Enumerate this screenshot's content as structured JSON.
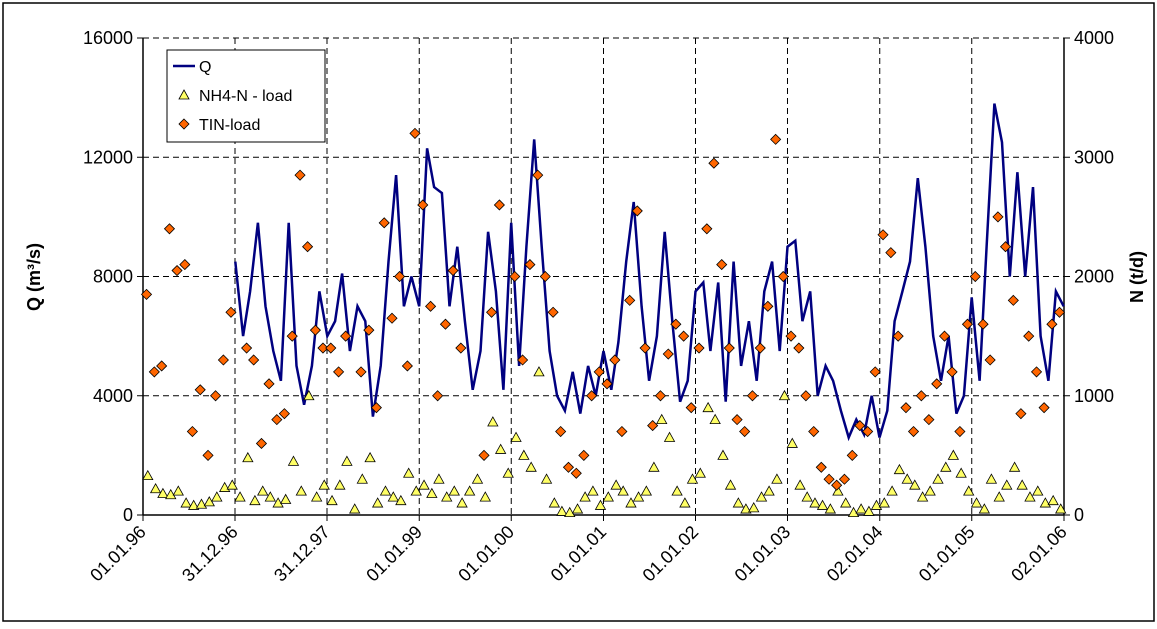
{
  "chart_data": {
    "type": "line-scatter",
    "ylabel": "Q (m³/s)",
    "y2label": "N (t/d)",
    "xlim": [
      "01.01.96",
      "02.01.06"
    ],
    "xticks": [
      "01.01.96",
      "31.12.96",
      "31.12.97",
      "01.01.99",
      "01.01.00",
      "01.01.01",
      "01.01.02",
      "01.01.03",
      "02.01.04",
      "01.01.05",
      "02.01.06"
    ],
    "ylim": [
      0,
      16000
    ],
    "yticks": [
      0,
      4000,
      8000,
      12000,
      16000
    ],
    "y2lim": [
      0,
      4000
    ],
    "y2ticks": [
      0,
      1000,
      2000,
      3000,
      4000
    ],
    "grid": true,
    "legend": "upper left",
    "series": [
      {
        "name": "Q",
        "kind": "line",
        "color": "#000080",
        "x": [
          "01.01.97",
          "01.02.97",
          "01.03.97",
          "01.04.97",
          "01.05.97",
          "01.06.97",
          "01.07.97",
          "01.08.97",
          "01.09.97",
          "01.10.97",
          "01.11.97",
          "01.12.97",
          "01.01.98",
          "01.02.98",
          "01.03.98",
          "01.04.98",
          "01.05.98",
          "01.06.98",
          "01.07.98",
          "01.08.98",
          "01.09.98",
          "01.10.98",
          "01.11.98",
          "01.12.98",
          "01.01.99",
          "01.02.99",
          "01.03.99",
          "01.04.99",
          "01.05.99",
          "01.06.99",
          "01.07.99",
          "01.08.99",
          "01.09.99",
          "01.10.99",
          "01.11.99",
          "01.12.99",
          "01.01.00",
          "01.02.00",
          "01.03.00",
          "01.04.00",
          "01.05.00",
          "01.06.00",
          "01.07.00",
          "01.08.00",
          "01.09.00",
          "01.10.00",
          "01.11.00",
          "01.12.00",
          "01.01.01",
          "01.02.01",
          "01.03.01",
          "01.04.01",
          "01.05.01",
          "01.06.01",
          "01.07.01",
          "01.08.01",
          "01.09.01",
          "01.10.01",
          "01.11.01",
          "01.12.01",
          "01.01.02",
          "01.02.02",
          "01.03.02",
          "01.04.02",
          "01.05.02",
          "01.06.02",
          "01.07.02",
          "01.08.02",
          "01.09.02",
          "01.10.02",
          "01.11.02",
          "01.12.02",
          "01.01.03",
          "01.02.03",
          "01.03.03",
          "01.04.03",
          "01.05.03",
          "01.06.03",
          "01.07.03",
          "01.08.03",
          "01.09.03",
          "01.10.03",
          "01.11.03",
          "01.12.03",
          "01.01.04",
          "01.02.04",
          "01.03.04",
          "01.04.04",
          "01.05.04",
          "01.06.04",
          "01.07.04",
          "01.08.04",
          "01.09.04",
          "01.10.04",
          "01.11.04",
          "01.12.04",
          "01.01.05",
          "01.02.05",
          "01.03.05",
          "01.04.05",
          "01.05.05",
          "01.06.05",
          "01.07.05",
          "01.08.05",
          "01.09.05",
          "01.10.05",
          "01.11.05",
          "01.12.05",
          "01.01.06"
        ],
        "values": [
          8500,
          6000,
          7500,
          9800,
          7000,
          5500,
          4500,
          9800,
          5000,
          3700,
          5000,
          7500,
          6000,
          6500,
          8100,
          5500,
          7000,
          6500,
          3300,
          5000,
          8500,
          11400,
          7000,
          8000,
          7000,
          12300,
          11000,
          10800,
          7000,
          9000,
          6500,
          4200,
          5500,
          9500,
          7500,
          4200,
          9800,
          5000,
          9000,
          12600,
          9000,
          5500,
          4000,
          3500,
          4800,
          3400,
          5000,
          4000,
          5500,
          4200,
          5800,
          8500,
          10500,
          7000,
          4500,
          6000,
          9500,
          6500,
          3800,
          4500,
          7500,
          7800,
          5500,
          7800,
          3800,
          8500,
          5000,
          6500,
          4500,
          7500,
          8500,
          5500,
          9000,
          9200,
          6500,
          7500,
          4000,
          5000,
          4500,
          3500,
          2600,
          3200,
          2700,
          4000,
          2600,
          3500,
          6500,
          7500,
          8500,
          11300,
          9000,
          6000,
          4500,
          6000,
          3400,
          4000,
          7300,
          4500,
          9000,
          13800,
          12500,
          8000,
          11500,
          8000,
          11000,
          6000,
          4500,
          7500,
          7000
        ]
      },
      {
        "name": "NH4-N - load",
        "kind": "scatter",
        "marker": "triangle",
        "color": "#ffff66",
        "axis": "y2",
        "x": [
          "20.01.96",
          "20.02.96",
          "20.03.96",
          "20.04.96",
          "20.05.96",
          "20.06.96",
          "20.07.96",
          "20.08.96",
          "20.09.96",
          "20.10.96",
          "20.11.96",
          "20.12.96",
          "20.01.97",
          "20.02.97",
          "20.03.97",
          "20.04.97",
          "20.05.97",
          "20.06.97",
          "20.07.97",
          "20.08.97",
          "20.09.97",
          "20.10.97",
          "20.11.97",
          "20.12.97",
          "20.01.98",
          "20.02.98",
          "20.03.98",
          "20.04.98",
          "20.05.98",
          "20.06.98",
          "20.07.98",
          "20.08.98",
          "20.09.98",
          "20.10.98",
          "20.11.98",
          "20.12.98",
          "20.01.99",
          "20.02.99",
          "20.03.99",
          "20.04.99",
          "20.05.99",
          "20.06.99",
          "20.07.99",
          "20.08.99",
          "20.09.99",
          "20.10.99",
          "20.11.99",
          "20.12.99",
          "20.01.00",
          "20.02.00",
          "20.03.00",
          "20.04.00",
          "20.05.00",
          "20.06.00",
          "20.07.00",
          "20.08.00",
          "20.09.00",
          "20.10.00",
          "20.11.00",
          "20.12.00",
          "20.01.01",
          "20.02.01",
          "20.03.01",
          "20.04.01",
          "20.05.01",
          "20.06.01",
          "20.07.01",
          "20.08.01",
          "20.09.01",
          "20.10.01",
          "20.11.01",
          "20.12.01",
          "20.01.02",
          "20.02.02",
          "20.03.02",
          "20.04.02",
          "20.05.02",
          "20.06.02",
          "20.07.02",
          "20.08.02",
          "20.09.02",
          "20.10.02",
          "20.11.02",
          "20.12.02",
          "20.01.03",
          "20.02.03",
          "20.03.03",
          "20.04.03",
          "20.05.03",
          "20.06.03",
          "20.07.03",
          "20.08.03",
          "20.09.03",
          "20.10.03",
          "20.11.03",
          "20.12.03",
          "20.01.04",
          "20.02.04",
          "20.03.04",
          "20.04.04",
          "20.05.04",
          "20.06.04",
          "20.07.04",
          "20.08.04",
          "20.09.04",
          "20.10.04",
          "20.11.04",
          "20.12.04",
          "20.01.05",
          "20.02.05",
          "20.03.05",
          "20.04.05",
          "20.05.05",
          "20.06.05",
          "20.07.05",
          "20.08.05",
          "20.09.05",
          "20.10.05",
          "20.11.05",
          "20.12.05"
        ],
        "values": [
          330,
          220,
          180,
          170,
          200,
          100,
          80,
          90,
          110,
          150,
          230,
          250,
          150,
          480,
          120,
          200,
          150,
          100,
          130,
          450,
          200,
          1000,
          150,
          250,
          120,
          250,
          450,
          50,
          300,
          480,
          100,
          200,
          150,
          120,
          350,
          200,
          250,
          180,
          300,
          150,
          200,
          100,
          200,
          300,
          150,
          780,
          550,
          350,
          650,
          500,
          400,
          1200,
          300,
          100,
          30,
          20,
          50,
          150,
          200,
          80,
          150,
          250,
          200,
          100,
          150,
          200,
          400,
          800,
          650,
          200,
          100,
          300,
          350,
          900,
          800,
          500,
          250,
          100,
          50,
          60,
          150,
          200,
          300,
          1000,
          600,
          250,
          150,
          100,
          80,
          50,
          200,
          100,
          20,
          50,
          30,
          80,
          100,
          200,
          380,
          300,
          250,
          150,
          200,
          300,
          400,
          500,
          350,
          200,
          100,
          50,
          300,
          150,
          250,
          400,
          250,
          150,
          200,
          100,
          120,
          50
        ]
      },
      {
        "name": "TIN-load",
        "kind": "scatter",
        "marker": "diamond",
        "color": "#ff6600",
        "axis": "y2",
        "x": [
          "15.01.96",
          "15.02.96",
          "15.03.96",
          "15.04.96",
          "15.05.96",
          "15.06.96",
          "15.07.96",
          "15.08.96",
          "15.09.96",
          "15.10.96",
          "15.11.96",
          "15.12.96",
          "15.02.97",
          "15.03.97",
          "15.04.97",
          "15.05.97",
          "15.06.97",
          "15.07.97",
          "15.08.97",
          "15.09.97",
          "15.10.97",
          "15.11.97",
          "15.12.97",
          "15.01.98",
          "15.02.98",
          "15.03.98",
          "15.05.98",
          "15.06.98",
          "15.07.98",
          "15.08.98",
          "15.09.98",
          "15.10.98",
          "15.11.98",
          "15.12.98",
          "15.01.99",
          "15.02.99",
          "15.03.99",
          "15.04.99",
          "15.05.99",
          "15.06.99",
          "15.09.99",
          "15.10.99",
          "15.11.99",
          "15.01.00",
          "15.02.00",
          "15.03.00",
          "15.04.00",
          "15.05.00",
          "15.06.00",
          "15.07.00",
          "15.08.00",
          "15.09.00",
          "15.10.00",
          "15.11.00",
          "15.12.00",
          "15.01.01",
          "15.02.01",
          "15.03.01",
          "15.04.01",
          "15.05.01",
          "15.06.01",
          "15.07.01",
          "15.08.01",
          "15.09.01",
          "15.10.01",
          "15.11.01",
          "15.12.01",
          "15.01.02",
          "15.02.02",
          "15.03.02",
          "15.04.02",
          "15.05.02",
          "15.06.02",
          "15.07.02",
          "15.08.02",
          "15.09.02",
          "15.10.02",
          "15.11.02",
          "15.12.02",
          "15.01.03",
          "15.02.03",
          "15.03.03",
          "15.04.03",
          "15.05.03",
          "15.06.03",
          "15.07.03",
          "15.08.03",
          "15.09.03",
          "15.10.03",
          "15.11.03",
          "15.12.03",
          "15.01.04",
          "15.02.04",
          "15.03.04",
          "15.04.04",
          "15.05.04",
          "15.06.04",
          "15.07.04",
          "15.08.04",
          "15.09.04",
          "15.10.04",
          "15.11.04",
          "15.12.04",
          "15.01.05",
          "15.02.05",
          "15.03.05",
          "15.04.05",
          "15.05.05",
          "15.06.05",
          "15.07.05",
          "15.08.05",
          "15.09.05",
          "15.10.05",
          "15.11.05",
          "15.12.05"
        ],
        "values": [
          1850,
          1200,
          1250,
          2400,
          2050,
          2100,
          700,
          1050,
          500,
          1000,
          1300,
          1700,
          1400,
          1300,
          600,
          1100,
          800,
          850,
          1500,
          2850,
          2250,
          1550,
          1400,
          1400,
          1200,
          1500,
          1200,
          1550,
          900,
          2450,
          1650,
          2000,
          1250,
          3200,
          2600,
          1750,
          1000,
          1600,
          2050,
          1400,
          500,
          1700,
          2600,
          2000,
          1300,
          2100,
          2850,
          2000,
          1700,
          700,
          400,
          350,
          500,
          1000,
          1200,
          1100,
          1300,
          700,
          1800,
          2550,
          1400,
          750,
          1000,
          1350,
          1600,
          1500,
          900,
          1400,
          2400,
          2950,
          2100,
          1400,
          800,
          700,
          1000,
          1400,
          1750,
          3150,
          2000,
          1500,
          1400,
          1000,
          700,
          400,
          300,
          250,
          300,
          500,
          750,
          700,
          1200,
          2350,
          2200,
          1500,
          900,
          700,
          1000,
          800,
          1100,
          1500,
          1200,
          700,
          1600,
          2000,
          1600,
          1300,
          2500,
          2250,
          1800,
          850,
          1500,
          1200,
          900,
          1600,
          1700
        ]
      }
    ]
  }
}
